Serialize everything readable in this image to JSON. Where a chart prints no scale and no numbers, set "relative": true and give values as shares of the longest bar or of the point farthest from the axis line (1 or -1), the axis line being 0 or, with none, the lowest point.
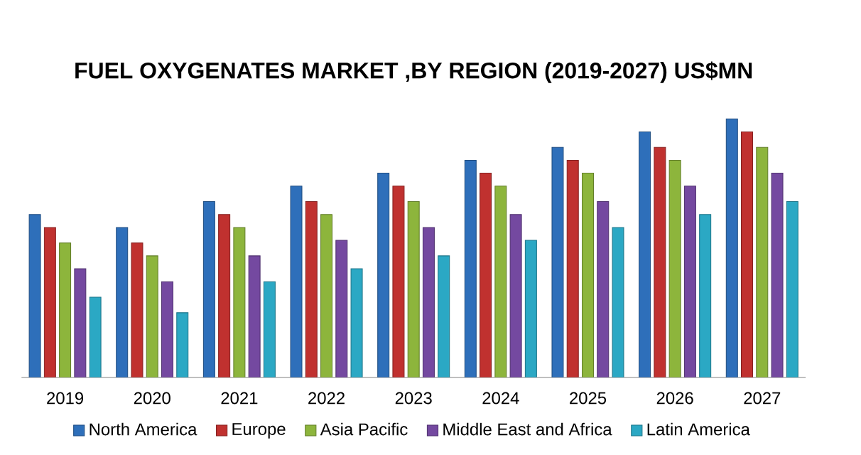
{
  "chart_data": {
    "type": "bar",
    "title": "FUEL OXYGENATES MARKET ,BY REGION (2019-2027) US$MN",
    "relative": true,
    "legend": "bottom",
    "categories": [
      "2019",
      "2020",
      "2021",
      "2022",
      "2023",
      "2024",
      "2025",
      "2026",
      "2027"
    ],
    "series": [
      {
        "name": "North America",
        "color": "#2e6fba",
        "values": [
          0.63,
          0.58,
          0.68,
          0.74,
          0.79,
          0.84,
          0.89,
          0.95,
          1
        ]
      },
      {
        "name": "Europe",
        "color": "#c0312f",
        "values": [
          0.58,
          0.52,
          0.63,
          0.68,
          0.74,
          0.79,
          0.84,
          0.89,
          0.95
        ]
      },
      {
        "name": "Asia Pacific",
        "color": "#8db53c",
        "values": [
          0.52,
          0.47,
          0.58,
          0.63,
          0.68,
          0.74,
          0.79,
          0.84,
          0.89
        ]
      },
      {
        "name": "Middle East and Africa",
        "color": "#7449a0",
        "values": [
          0.42,
          0.37,
          0.47,
          0.53,
          0.58,
          0.63,
          0.68,
          0.74,
          0.79
        ]
      },
      {
        "name": "Latin America",
        "color": "#2ba8c4",
        "values": [
          0.31,
          0.25,
          0.37,
          0.42,
          0.47,
          0.53,
          0.58,
          0.63,
          0.68
        ]
      }
    ]
  }
}
